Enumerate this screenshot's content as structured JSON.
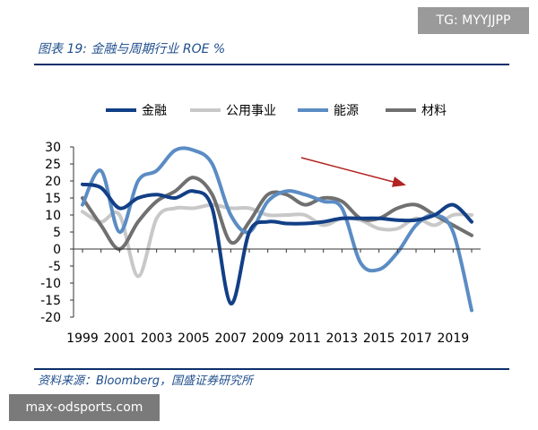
{
  "watermark": "TG: MYYJJPP",
  "figure_title": "图表 19:  金融与周期行业 ROE %",
  "source": "资料来源：Bloomberg，国盛证券研究所",
  "site_banner": "max-odsports.com",
  "colors": {
    "金融": "#123f86",
    "公用事业": "#c8c8c8",
    "能源": "#5b8cc4",
    "材料": "#707070",
    "arrow": "#b22222",
    "rule": "#0b2f6a"
  },
  "chart_data": {
    "type": "line",
    "title": "",
    "xlabel": "",
    "ylabel": "",
    "x": [
      1999,
      2000,
      2001,
      2002,
      2003,
      2004,
      2005,
      2006,
      2007,
      2008,
      2009,
      2010,
      2011,
      2012,
      2013,
      2014,
      2015,
      2016,
      2017,
      2018,
      2019,
      2020
    ],
    "x_tick_labels": [
      "1999",
      "2001",
      "2003",
      "2005",
      "2007",
      "2009",
      "2011",
      "2013",
      "2015",
      "2017",
      "2019"
    ],
    "ylim": [
      -20,
      30
    ],
    "y_ticks": [
      -20,
      -15,
      -10,
      -5,
      0,
      5,
      10,
      15,
      20,
      25,
      30
    ],
    "legend_position": "top",
    "series": [
      {
        "name": "金融",
        "values": [
          19,
          18,
          12,
          15,
          16,
          15,
          17,
          12,
          -16,
          5,
          8,
          7.5,
          7.5,
          8,
          9,
          9,
          9,
          8.5,
          8.5,
          10,
          13,
          8
        ]
      },
      {
        "name": "公用事业",
        "values": [
          11,
          8,
          10,
          -8,
          9,
          12,
          12,
          13,
          12,
          12,
          10,
          10,
          10,
          7,
          9,
          8.5,
          6,
          6,
          9,
          7,
          10,
          10
        ]
      },
      {
        "name": "能源",
        "values": [
          13,
          23,
          5,
          20,
          23,
          29,
          29,
          25,
          10,
          5,
          14,
          17,
          16,
          14,
          12,
          -4,
          -6,
          -1,
          7,
          10,
          5,
          -18
        ]
      },
      {
        "name": "材料",
        "values": [
          15,
          7,
          0,
          8,
          14,
          17,
          21,
          16,
          2,
          8,
          16,
          16,
          13,
          15,
          14,
          9,
          9,
          12,
          13,
          10,
          7,
          4
        ]
      }
    ]
  }
}
